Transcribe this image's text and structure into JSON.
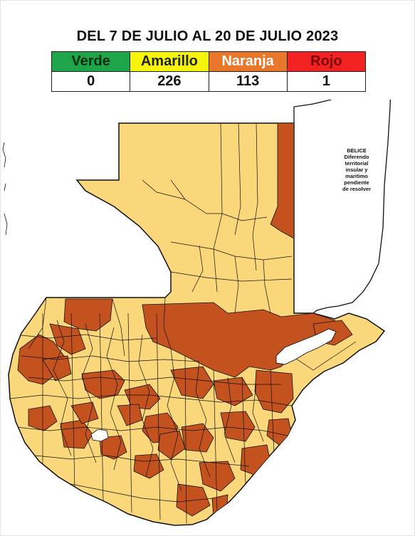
{
  "title": "DEL 7 DE JULIO AL 20 DE JULIO 2023",
  "legend": {
    "headers": [
      {
        "label": "Verde",
        "color": "#1ea54a"
      },
      {
        "label": "Amarillo",
        "color": "#f5f50a"
      },
      {
        "label": "Naranja",
        "color": "#e8762b"
      },
      {
        "label": "Rojo",
        "color": "#f22222"
      }
    ],
    "counts": [
      "0",
      "226",
      "113",
      "1"
    ]
  },
  "map": {
    "fill_yellow": "#fbd77c",
    "fill_orange": "#c4521e",
    "belice_note": {
      "line1": "BELICE",
      "line2": "Diferendo",
      "line3": "territorial",
      "line4": "insular y",
      "line5": "marítimo",
      "line6": "pendiente",
      "line7": "de resolver"
    }
  }
}
